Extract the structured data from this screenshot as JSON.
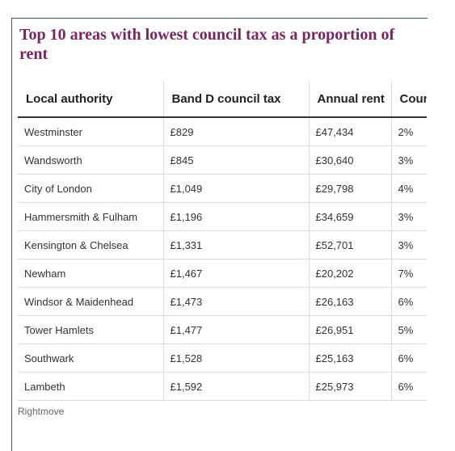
{
  "header": {
    "title": "Top 10 areas with lowest council tax as a proportion of rent"
  },
  "table": {
    "columns": [
      "Local authority",
      "Band D council tax",
      "Annual rent",
      "Coun"
    ],
    "rows": [
      [
        "Westminster",
        "£829",
        "£47,434",
        "2%"
      ],
      [
        "Wandsworth",
        "£845",
        "£30,640",
        "3%"
      ],
      [
        "City of London",
        "£1,049",
        "£29,798",
        "4%"
      ],
      [
        "Hammersmith & Fulham",
        "£1,196",
        "£34,659",
        "3%"
      ],
      [
        "Kensington & Chelsea",
        "£1,331",
        "£52,701",
        "3%"
      ],
      [
        "Newham",
        "£1,467",
        "£20,202",
        "7%"
      ],
      [
        "Windsor & Maidenhead",
        "£1,473",
        "£26,163",
        "6%"
      ],
      [
        "Tower Hamlets",
        "£1,477",
        "£26,951",
        "5%"
      ],
      [
        "Southwark",
        "£1,528",
        "£25,163",
        "6%"
      ],
      [
        "Lambeth",
        "£1,592",
        "£25,973",
        "6%"
      ]
    ]
  },
  "footer": {
    "source": "Rightmove"
  }
}
